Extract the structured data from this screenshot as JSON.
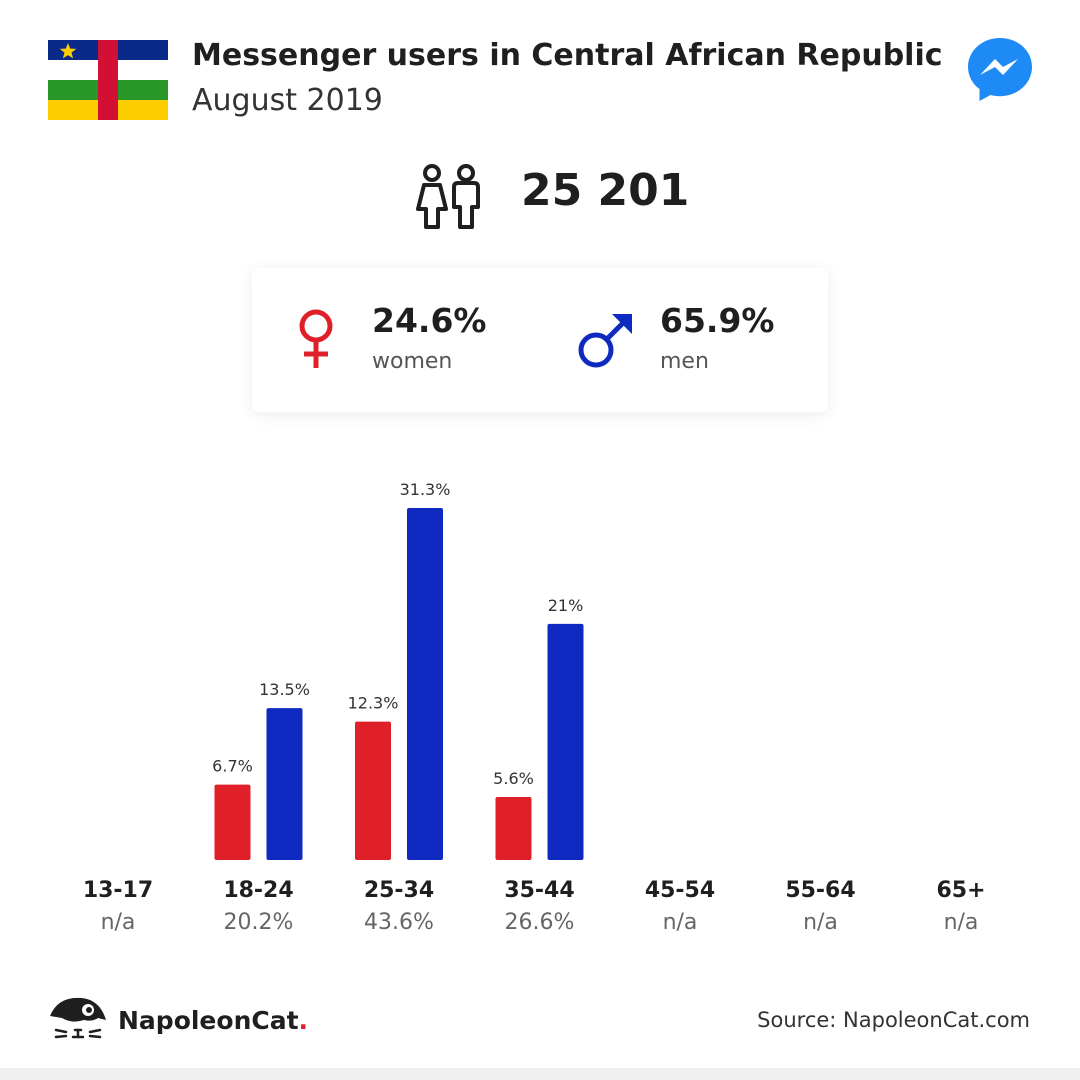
{
  "header": {
    "title": "Messenger users in Central African Republic",
    "subtitle": "August 2019"
  },
  "total": {
    "value": "25 201"
  },
  "gender": {
    "women": {
      "percent": "24.6%",
      "label": "women"
    },
    "men": {
      "percent": "65.9%",
      "label": "men"
    }
  },
  "colors": {
    "women": "#e02028",
    "men": "#0f2ac0",
    "messenger": "#1e8af5",
    "flag_blue": "#0a2a8a",
    "flag_green": "#289728",
    "flag_yellow": "#ffce00",
    "flag_red": "#d21034"
  },
  "icons": {
    "flag": "central-african-republic-flag",
    "app": "messenger-icon",
    "users": "people-icon",
    "women": "female-symbol-icon",
    "men": "male-symbol-icon",
    "brand": "napoleoncat-logo"
  },
  "chart_data": {
    "type": "bar",
    "categories": [
      "13-17",
      "18-24",
      "25-34",
      "35-44",
      "45-54",
      "55-64",
      "65+"
    ],
    "category_totals": [
      "n/a",
      "20.2%",
      "43.6%",
      "26.6%",
      "n/a",
      "n/a",
      "n/a"
    ],
    "series": [
      {
        "name": "women",
        "values": [
          null,
          6.7,
          12.3,
          5.6,
          null,
          null,
          null
        ],
        "labels": [
          "",
          "6.7%",
          "12.3%",
          "5.6%",
          "",
          "",
          ""
        ]
      },
      {
        "name": "men",
        "values": [
          null,
          13.5,
          31.3,
          21,
          null,
          null,
          null
        ],
        "labels": [
          "",
          "13.5%",
          "31.3%",
          "21%",
          "",
          "",
          ""
        ]
      }
    ],
    "ylim": [
      0,
      31.3
    ],
    "grid": false,
    "legend": "none"
  },
  "footer": {
    "brand": "NapoleonCat",
    "brand_dot": ".",
    "source": "Source: NapoleonCat.com"
  }
}
